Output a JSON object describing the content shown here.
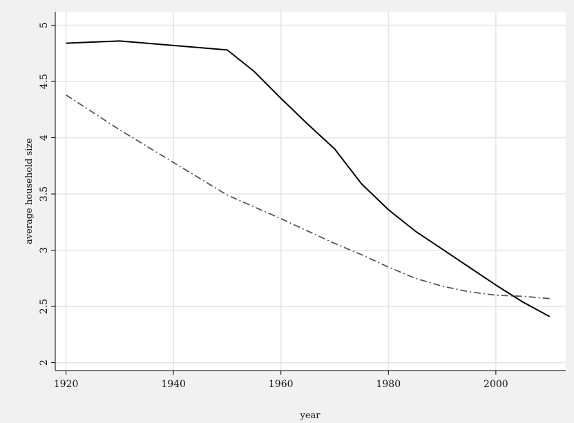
{
  "chart_data": {
    "type": "line",
    "xlabel": "year",
    "ylabel": "average household size",
    "xlim": [
      1918,
      2013
    ],
    "ylim": [
      1.93,
      5.12
    ],
    "x_ticks": [
      1920,
      1940,
      1960,
      1980,
      2000
    ],
    "y_ticks": [
      2,
      2.5,
      3,
      3.5,
      4,
      4.5,
      5
    ],
    "x_tick_labels": [
      "1920",
      "1940",
      "1960",
      "1980",
      "2000"
    ],
    "y_tick_labels": [
      "2",
      "2.5",
      "3",
      "3.5",
      "4",
      "4.5",
      "5"
    ],
    "grid": true,
    "legend": "none",
    "series": [
      {
        "style": "solid",
        "color": "#000000",
        "x": [
          1920,
          1930,
          1940,
          1950,
          1955,
          1960,
          1965,
          1970,
          1975,
          1980,
          1985,
          1990,
          1995,
          2000,
          2005,
          2010
        ],
        "values": [
          4.84,
          4.86,
          4.82,
          4.78,
          4.59,
          4.35,
          4.12,
          3.9,
          3.59,
          3.36,
          3.17,
          3.01,
          2.85,
          2.69,
          2.54,
          2.41
        ]
      },
      {
        "style": "dash-dot",
        "color": "#555555",
        "x": [
          1920,
          1930,
          1940,
          1950,
          1960,
          1970,
          1975,
          1980,
          1985,
          1990,
          1995,
          2000,
          2005,
          2010
        ],
        "values": [
          4.38,
          4.07,
          3.78,
          3.49,
          3.28,
          3.06,
          2.96,
          2.85,
          2.75,
          2.68,
          2.63,
          2.6,
          2.59,
          2.57
        ]
      }
    ]
  }
}
